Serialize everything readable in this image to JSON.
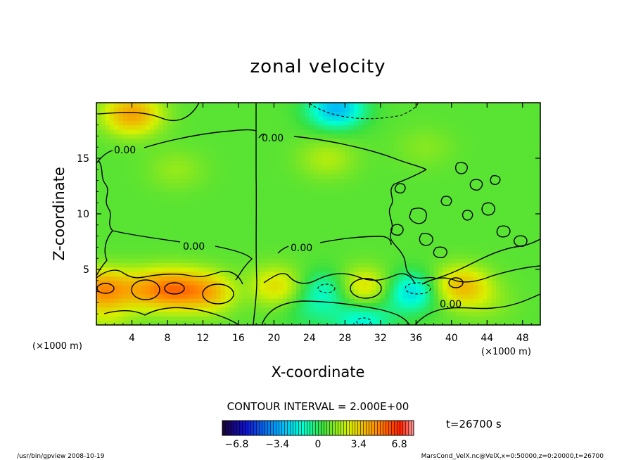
{
  "chart_data": {
    "type": "heatmap",
    "title": "zonal velocity",
    "xlabel": "X-coordinate",
    "ylabel": "Z-coordinate",
    "x_unit": "(×1000 m)",
    "y_unit": "(×1000 m)",
    "xlim": [
      0,
      50
    ],
    "ylim": [
      0,
      20
    ],
    "x_ticks": [
      4,
      8,
      12,
      16,
      20,
      24,
      28,
      32,
      36,
      40,
      44,
      48
    ],
    "y_ticks": [
      5,
      10,
      15
    ],
    "contour_labels": [
      "0.00",
      "0.00",
      "0.00",
      "0.00",
      "0.00"
    ],
    "contour_interval_text": "CONTOUR INTERVAL = 2.000E+00",
    "time_text": "t=26700 s",
    "colorbar": {
      "range": [
        -8,
        8
      ],
      "tick_values": [
        -6.8,
        -3.4,
        0,
        3.4,
        6.8
      ],
      "tick_labels": [
        "−6.8",
        "−3.4",
        "0",
        "3.4",
        "6.8"
      ]
    },
    "footer_left": "/usr/bin/gpview   2008-10-19",
    "footer_right": "MarsCond_VelX.nc@VelX,x=0:50000,z=0:20000,t=26700",
    "field_features": [
      {
        "x": 4,
        "z": 19,
        "u": 3.8
      },
      {
        "x": 27,
        "z": 19.5,
        "u": -3.4
      },
      {
        "x": 26,
        "z": 15,
        "u": 1.2
      },
      {
        "x": 9,
        "z": 14,
        "u": 0.8
      },
      {
        "x": 37,
        "z": 16,
        "u": 0.6
      },
      {
        "x": 0.6,
        "z": 3.2,
        "u": 4.2
      },
      {
        "x": 5.5,
        "z": 3.2,
        "u": 2.6
      },
      {
        "x": 9,
        "z": 3.2,
        "u": 3.8
      },
      {
        "x": 13,
        "z": 3.0,
        "u": 3.2
      },
      {
        "x": 20,
        "z": 3.5,
        "u": 2.4
      },
      {
        "x": 30,
        "z": 3.4,
        "u": 2.6
      },
      {
        "x": 41,
        "z": 3.5,
        "u": 3.2
      },
      {
        "x": 35.5,
        "z": 3.0,
        "u": -2.8
      },
      {
        "x": 26,
        "z": 3.2,
        "u": -2.0
      },
      {
        "x": 30,
        "z": 0.4,
        "u": -2.2
      },
      {
        "x": 16,
        "z": 3.2,
        "u": -0.8
      },
      {
        "x": 24,
        "z": 1.2,
        "u": -0.8
      },
      {
        "x": 1,
        "z": 0.5,
        "u": 1.0
      },
      {
        "x": 44,
        "z": 2.0,
        "u": 0.6
      }
    ]
  }
}
